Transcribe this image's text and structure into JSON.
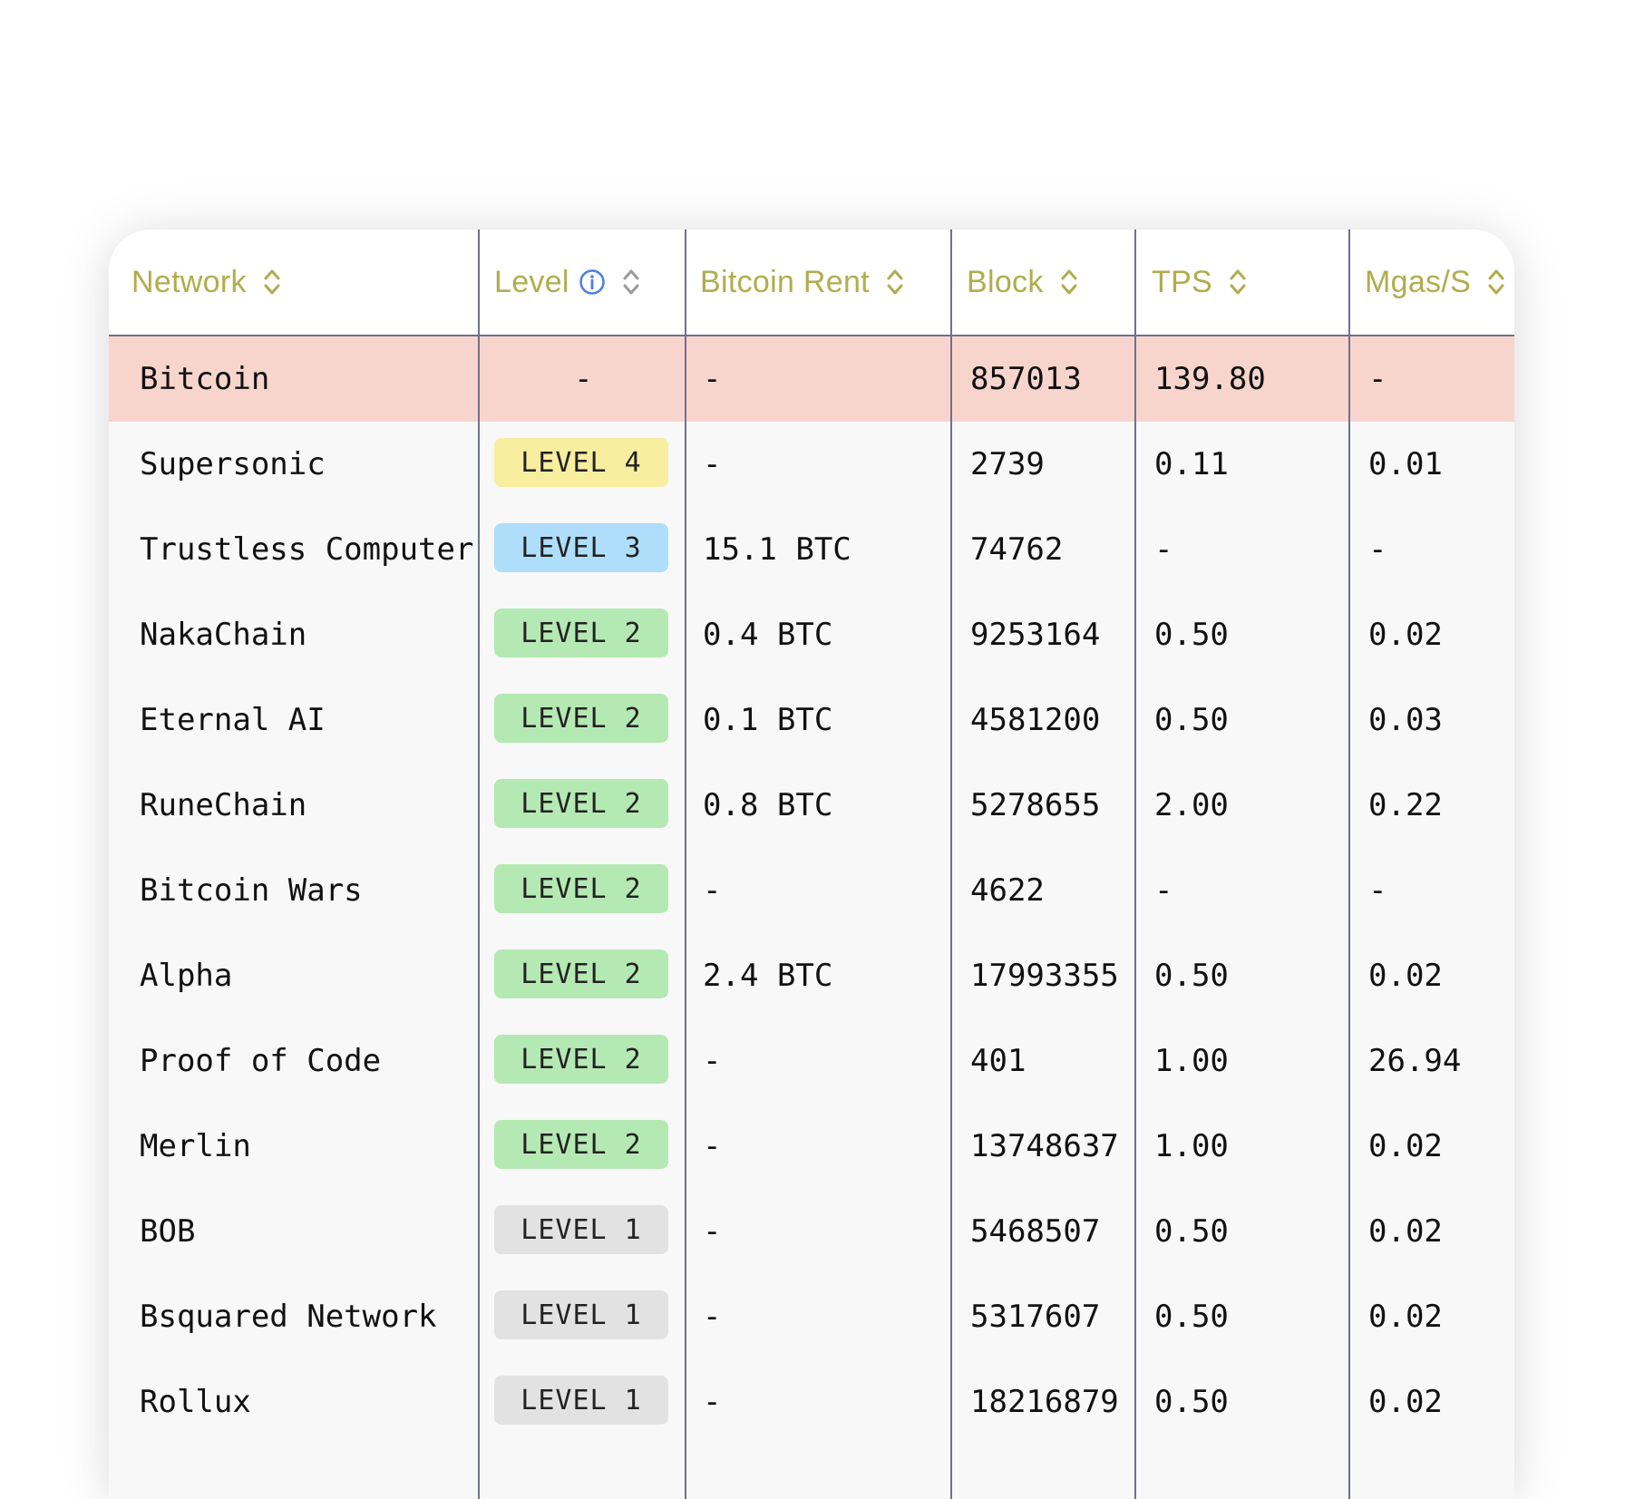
{
  "columns": [
    {
      "label": "Network"
    },
    {
      "label": "Level"
    },
    {
      "label": "Bitcoin Rent"
    },
    {
      "label": "Block"
    },
    {
      "label": "TPS"
    },
    {
      "label": "Mgas/S"
    }
  ],
  "level_colors": {
    "LEVEL 4": "#f7ee9f",
    "LEVEL 3": "#afdefb",
    "LEVEL 2": "#b5e9b3",
    "LEVEL 1": "#e2e2e2"
  },
  "accent_color": "#b0ad4d",
  "highlight_color": "#f7d5cd",
  "rows": [
    {
      "network": "Bitcoin",
      "level": "-",
      "rent": "-",
      "block": "857013",
      "tps": "139.80",
      "mgas": "-",
      "highlight": true
    },
    {
      "network": "Supersonic",
      "level": "LEVEL 4",
      "rent": "-",
      "block": "2739",
      "tps": "0.11",
      "mgas": "0.01"
    },
    {
      "network": "Trustless Computer",
      "level": "LEVEL 3",
      "rent": "15.1 BTC",
      "block": "74762",
      "tps": "-",
      "mgas": "-"
    },
    {
      "network": "NakaChain",
      "level": "LEVEL 2",
      "rent": "0.4 BTC",
      "block": "9253164",
      "tps": "0.50",
      "mgas": "0.02"
    },
    {
      "network": "Eternal AI",
      "level": "LEVEL 2",
      "rent": "0.1 BTC",
      "block": "4581200",
      "tps": "0.50",
      "mgas": "0.03"
    },
    {
      "network": "RuneChain",
      "level": "LEVEL 2",
      "rent": "0.8 BTC",
      "block": "5278655",
      "tps": "2.00",
      "mgas": "0.22"
    },
    {
      "network": "Bitcoin Wars",
      "level": "LEVEL 2",
      "rent": "-",
      "block": "4622",
      "tps": "-",
      "mgas": "-"
    },
    {
      "network": "Alpha",
      "level": "LEVEL 2",
      "rent": "2.4 BTC",
      "block": "17993355",
      "tps": "0.50",
      "mgas": "0.02"
    },
    {
      "network": "Proof of Code",
      "level": "LEVEL 2",
      "rent": "-",
      "block": "401",
      "tps": "1.00",
      "mgas": "26.94"
    },
    {
      "network": "Merlin",
      "level": "LEVEL 2",
      "rent": "-",
      "block": "13748637",
      "tps": "1.00",
      "mgas": "0.02"
    },
    {
      "network": "BOB",
      "level": "LEVEL 1",
      "rent": "-",
      "block": "5468507",
      "tps": "0.50",
      "mgas": "0.02"
    },
    {
      "network": "Bsquared Network",
      "level": "LEVEL 1",
      "rent": "-",
      "block": "5317607",
      "tps": "0.50",
      "mgas": "0.02"
    },
    {
      "network": "Rollux",
      "level": "LEVEL 1",
      "rent": "-",
      "block": "18216879",
      "tps": "0.50",
      "mgas": "0.02"
    }
  ]
}
